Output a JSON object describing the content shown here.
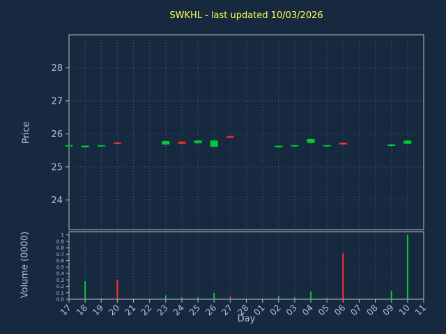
{
  "title": "SWKHL - last updated 10/03/2026",
  "colors": {
    "background": "#17293e",
    "title": "#ffff55",
    "axis_text": "#aec2da",
    "grid": "#4b5e76",
    "frame": "#b9c0c8",
    "up": "#00cc33",
    "down": "#ff3030"
  },
  "chart_data": {
    "type": "candlestick",
    "title": "SWKHL - last updated 10/03/2026",
    "xlabel": "Day",
    "grid": "dotted",
    "price_axis": {
      "label": "Price",
      "ticks": [
        24,
        25,
        26,
        27,
        28
      ],
      "ylim": [
        23.1,
        29.0
      ]
    },
    "volume_axis": {
      "label": "Volume (0000)",
      "tick_values": [
        0,
        0.1,
        0.2,
        0.3,
        0.4,
        0.5,
        0.6,
        0.7,
        0.8,
        0.9,
        1
      ],
      "tick_labels": [
        "0.0",
        "0.1",
        "0.2",
        "0.3",
        "0.4",
        "0.5",
        "0.6",
        "0.7",
        "0.8",
        "0.9",
        "1"
      ],
      "ylim": [
        0,
        1.05
      ]
    },
    "days": [
      "17",
      "18",
      "19",
      "20",
      "21",
      "22",
      "23",
      "24",
      "25",
      "26",
      "27",
      "28",
      "01",
      "02",
      "03",
      "04",
      "05",
      "06",
      "07",
      "08",
      "09",
      "10",
      "11"
    ],
    "candles": [
      {
        "day": "17",
        "open": 25.62,
        "high": 25.67,
        "low": 25.6,
        "close": 25.66,
        "volume": 0.02
      },
      {
        "day": "18",
        "open": 25.6,
        "high": 25.65,
        "low": 25.58,
        "close": 25.64,
        "volume": 0.28
      },
      {
        "day": "19",
        "open": 25.62,
        "high": 25.67,
        "low": 25.61,
        "close": 25.66,
        "volume": 0.02
      },
      {
        "day": "20",
        "open": 25.74,
        "high": 25.76,
        "low": 25.68,
        "close": 25.7,
        "volume": 0.3
      },
      {
        "day": "23",
        "open": 25.68,
        "high": 25.8,
        "low": 25.66,
        "close": 25.78,
        "volume": 0.06
      },
      {
        "day": "24",
        "open": 25.76,
        "high": 25.78,
        "low": 25.68,
        "close": 25.7,
        "volume": 0.03
      },
      {
        "day": "25",
        "open": 25.72,
        "high": 25.82,
        "low": 25.7,
        "close": 25.8,
        "volume": 0.03
      },
      {
        "day": "26",
        "open": 25.61,
        "high": 25.83,
        "low": 25.59,
        "close": 25.8,
        "volume": 0.1
      },
      {
        "day": "27",
        "open": 25.93,
        "high": 25.95,
        "low": 25.87,
        "close": 25.89,
        "volume": 0.04
      },
      {
        "day": "02",
        "open": 25.6,
        "high": 25.66,
        "low": 25.58,
        "close": 25.64,
        "volume": 0.05
      },
      {
        "day": "03",
        "open": 25.62,
        "high": 25.67,
        "low": 25.6,
        "close": 25.66,
        "volume": 0.03
      },
      {
        "day": "04",
        "open": 25.73,
        "high": 25.86,
        "low": 25.71,
        "close": 25.84,
        "volume": 0.12
      },
      {
        "day": "05",
        "open": 25.62,
        "high": 25.67,
        "low": 25.6,
        "close": 25.66,
        "volume": 0.02
      },
      {
        "day": "06",
        "open": 25.73,
        "high": 25.75,
        "low": 25.66,
        "close": 25.68,
        "volume": 0.72
      },
      {
        "day": "09",
        "open": 25.63,
        "high": 25.69,
        "low": 25.61,
        "close": 25.68,
        "volume": 0.13
      },
      {
        "day": "10",
        "open": 25.7,
        "high": 25.82,
        "low": 25.68,
        "close": 25.8,
        "volume": 1.0
      }
    ]
  }
}
